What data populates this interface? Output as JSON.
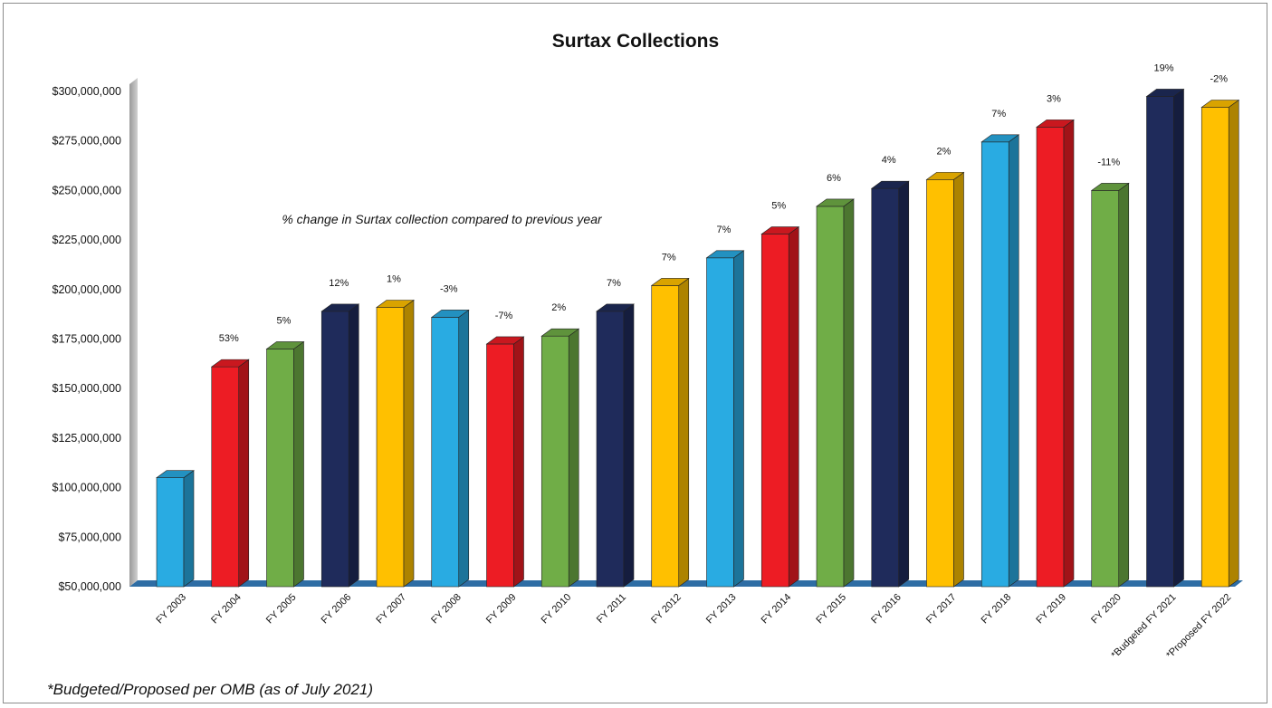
{
  "chart_data": {
    "type": "bar",
    "title": "Surtax Collections",
    "xlabel": "",
    "ylabel": "",
    "ylim": [
      50000000,
      300000000
    ],
    "ytick_step": 25000000,
    "y_tick_labels": [
      "$50,000,000",
      "$75,000,000",
      "$100,000,000",
      "$125,000,000",
      "$150,000,000",
      "$175,000,000",
      "$200,000,000",
      "$225,000,000",
      "$250,000,000",
      "$275,000,000",
      "$300,000,000"
    ],
    "grid": false,
    "legend": "none",
    "categories": [
      "FY 2003",
      "FY 2004",
      "FY 2005",
      "FY 2006",
      "FY 2007",
      "FY 2008",
      "FY 2009",
      "FY 2010",
      "FY 2011",
      "FY 2012",
      "FY 2013",
      "FY 2014",
      "FY 2015",
      "FY 2016",
      "FY 2017",
      "FY 2018",
      "FY 2019",
      "FY 2020",
      "*Budgeted FY 2021",
      "*Proposed FY 2022"
    ],
    "values": [
      105000000,
      161000000,
      170000000,
      189000000,
      191000000,
      186000000,
      172500000,
      176500000,
      189000000,
      202000000,
      216000000,
      228000000,
      242000000,
      251000000,
      255500000,
      274500000,
      282000000,
      250000000,
      297500000,
      292000000
    ],
    "data_labels": [
      "",
      "53%",
      "5%",
      "12%",
      "1%",
      "-3%",
      "-7%",
      "2%",
      "7%",
      "7%",
      "7%",
      "5%",
      "6%",
      "4%",
      "2%",
      "7%",
      "3%",
      "-11%",
      "19%",
      "-2%"
    ],
    "colors": [
      "#29abe2",
      "#ed1c24",
      "#70ad47",
      "#1f2b5b",
      "#ffc000",
      "#29abe2",
      "#ed1c24",
      "#70ad47",
      "#1f2b5b",
      "#ffc000",
      "#29abe2",
      "#ed1c24",
      "#70ad47",
      "#1f2b5b",
      "#ffc000",
      "#29abe2",
      "#ed1c24",
      "#70ad47",
      "#1f2b5b",
      "#ffc000"
    ],
    "annotation": "% change in Surtax collection compared to previous year",
    "footnote": "*Budgeted/Proposed per OMB (as of July 2021)"
  }
}
